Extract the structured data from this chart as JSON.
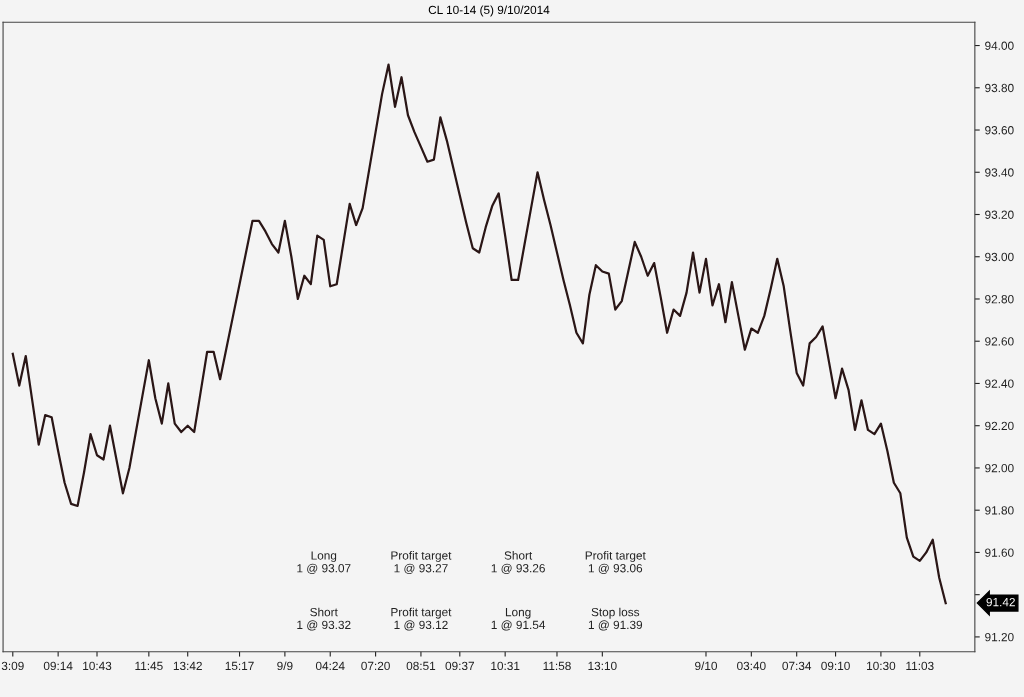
{
  "chart_data": {
    "type": "line",
    "title": "CL 10-14 (5) 9/10/2014",
    "categories": [
      null,
      "3:09",
      null,
      null,
      null,
      null,
      null,
      null,
      "09:14",
      null,
      null,
      null,
      null,
      null,
      "10:43",
      null,
      null,
      null,
      null,
      null,
      null,
      null,
      "11:45",
      null,
      null,
      null,
      null,
      null,
      "13:42",
      null,
      null,
      null,
      null,
      null,
      null,
      null,
      "15:17",
      null,
      null,
      null,
      null,
      null,
      null,
      "9/9",
      null,
      null,
      null,
      null,
      null,
      null,
      "04:24",
      null,
      null,
      null,
      null,
      null,
      null,
      "07:20",
      null,
      null,
      null,
      null,
      null,
      null,
      "08:51",
      null,
      null,
      null,
      null,
      null,
      "09:37",
      null,
      null,
      null,
      null,
      null,
      null,
      "10:31",
      null,
      null,
      null,
      null,
      null,
      null,
      null,
      "11:58",
      null,
      null,
      null,
      null,
      null,
      null,
      "13:10",
      null,
      null,
      null,
      null,
      null,
      null,
      null,
      null,
      null,
      null,
      null,
      null,
      null,
      null,
      null,
      "9/10",
      null,
      null,
      null,
      null,
      null,
      null,
      "03:40",
      null,
      null,
      null,
      null,
      null,
      null,
      "07:34",
      null,
      null,
      null,
      null,
      null,
      "09:10",
      null,
      null,
      null,
      null,
      null,
      null,
      "10:30",
      null,
      null,
      null,
      null,
      null,
      "11:03",
      null,
      null,
      null,
      null,
      null,
      null,
      null,
      null
    ],
    "series": [
      {
        "color": "#2a1616",
        "values": [
          null,
          92.54,
          92.39,
          92.53,
          92.32,
          92.11,
          92.25,
          92.24,
          92.08,
          91.93,
          91.83,
          91.82,
          91.98,
          92.16,
          92.06,
          92.04,
          92.2,
          92.04,
          91.88,
          92.0,
          92.17,
          92.34,
          92.51,
          92.33,
          92.21,
          92.4,
          92.21,
          92.17,
          92.2,
          92.17,
          92.36,
          92.55,
          92.55,
          92.42,
          92.57,
          92.72,
          92.87,
          93.02,
          93.17,
          93.17,
          93.12,
          93.06,
          93.02,
          93.17,
          93.0,
          92.8,
          92.91,
          92.87,
          93.1,
          93.08,
          92.86,
          92.87,
          93.06,
          93.25,
          93.15,
          93.23,
          93.41,
          93.59,
          93.77,
          93.91,
          93.71,
          93.85,
          93.67,
          93.59,
          93.52,
          93.45,
          93.46,
          93.66,
          93.55,
          93.42,
          93.29,
          93.16,
          93.04,
          93.02,
          93.14,
          93.24,
          93.3,
          93.1,
          92.89,
          92.89,
          93.06,
          93.23,
          93.4,
          93.27,
          93.15,
          93.02,
          92.89,
          92.77,
          92.64,
          92.59,
          92.82,
          92.96,
          92.93,
          92.92,
          92.75,
          92.79,
          92.93,
          93.07,
          93.0,
          92.91,
          92.97,
          92.81,
          92.64,
          92.75,
          92.72,
          92.83,
          93.02,
          92.83,
          92.99,
          92.77,
          92.87,
          92.69,
          92.88,
          92.72,
          92.56,
          92.66,
          92.64,
          92.72,
          92.85,
          92.99,
          92.86,
          92.65,
          92.45,
          92.39,
          92.59,
          92.62,
          92.67,
          92.5,
          92.33,
          92.47,
          92.37,
          92.18,
          92.32,
          92.18,
          92.16,
          92.21,
          92.08,
          91.93,
          91.88,
          91.67,
          91.58,
          91.56,
          91.6,
          91.66,
          91.48,
          91.36,
          null,
          null,
          null,
          null
        ]
      }
    ],
    "ylim": [
      91.13,
      94.11
    ],
    "yticks": [
      {
        "value": 91.2,
        "label": "91.20"
      },
      {
        "value": 91.4,
        "label": null
      },
      {
        "value": 91.6,
        "label": "91.60"
      },
      {
        "value": 91.8,
        "label": "91.80"
      },
      {
        "value": 92.0,
        "label": "92.00"
      },
      {
        "value": 92.2,
        "label": "92.20"
      },
      {
        "value": 92.4,
        "label": "92.40"
      },
      {
        "value": 92.6,
        "label": "92.60"
      },
      {
        "value": 92.8,
        "label": "92.80"
      },
      {
        "value": 93.0,
        "label": "93.00"
      },
      {
        "value": 93.2,
        "label": "93.20"
      },
      {
        "value": 93.4,
        "label": "93.40"
      },
      {
        "value": 93.6,
        "label": "93.60"
      },
      {
        "value": 93.8,
        "label": "93.80"
      },
      {
        "value": 94.0,
        "label": "94.00"
      }
    ],
    "annotations": [
      "91.42",
      "Long\n1 @ 93.07",
      "Profit target\n1 @ 93.27",
      "Short\n1 @ 93.26",
      "Profit target\n1 @ 93.06",
      "Short\n1 @ 93.32",
      "Profit target\n1 @ 93.12",
      "Long\n1 @ 91.54",
      "Stop loss\n1 @ 91.39"
    ],
    "grid": false,
    "legend": false,
    "marker": "none",
    "line_style": "solid"
  }
}
